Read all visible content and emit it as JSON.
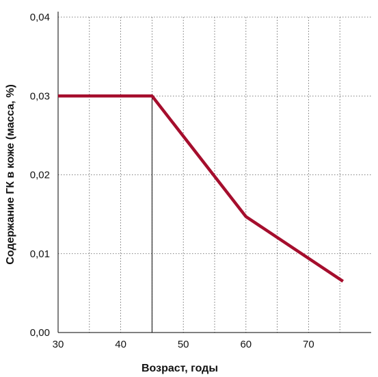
{
  "chart_data": {
    "type": "line",
    "title": "",
    "xlabel": "Возраст, годы",
    "ylabel": "Содержание ГК в коже (масса, %)",
    "xlim": [
      30,
      80
    ],
    "ylim": [
      0,
      0.04
    ],
    "x_ticks": [
      "30",
      "40",
      "50",
      "60",
      "70"
    ],
    "y_ticks": [
      "0,00",
      "0,01",
      "0,02",
      "0,03",
      "0,04"
    ],
    "grid": true,
    "series": [
      {
        "color": "#a50e2d",
        "points": [
          {
            "x": 30,
            "y": 0.03
          },
          {
            "x": 45,
            "y": 0.03
          },
          {
            "x": 60,
            "y": 0.0147
          },
          {
            "x": 75.5,
            "y": 0.0065
          }
        ]
      }
    ],
    "reference_line": {
      "x": 45,
      "y_from": 0,
      "y_to": 0.03
    }
  }
}
